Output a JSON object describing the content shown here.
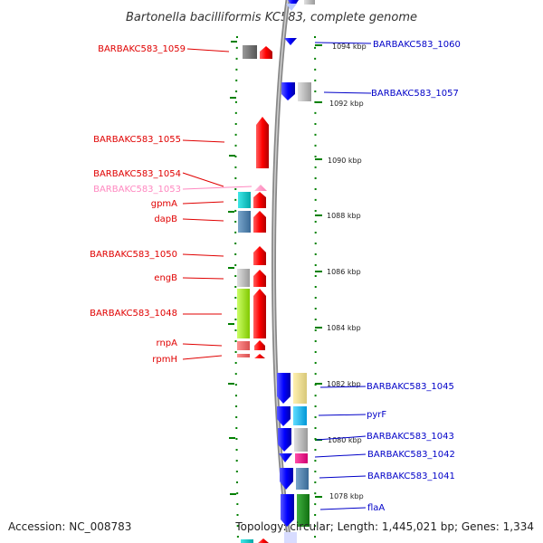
{
  "title": "Bartonella bacilliformis KC583, complete genome",
  "footer": {
    "accession": "Accession: NC_008783",
    "summary": "Topology: circular; Length: 1,445,021 bp; Genes: 1,334"
  },
  "kbp_labels": [
    "1094 kbp",
    "1092 kbp",
    "1090 kbp",
    "1088 kbp",
    "1086 kbp",
    "1084 kbp",
    "1082 kbp",
    "1080 kbp",
    "1078 kbp"
  ],
  "genes_left": [
    {
      "label": "BARBAKC583_1059",
      "color": "red"
    },
    {
      "label": "BARBAKC583_1055",
      "color": "red"
    },
    {
      "label": "BARBAKC583_1054",
      "color": "red"
    },
    {
      "label": "BARBAKC583_1053",
      "color": "pink"
    },
    {
      "label": "gpmA",
      "color": "red"
    },
    {
      "label": "dapB",
      "color": "red"
    },
    {
      "label": "BARBAKC583_1050",
      "color": "red"
    },
    {
      "label": "engB",
      "color": "red"
    },
    {
      "label": "BARBAKC583_1048",
      "color": "red"
    },
    {
      "label": "rnpA",
      "color": "red"
    },
    {
      "label": "rpmH",
      "color": "red"
    }
  ],
  "genes_right": [
    {
      "label": "BARBAKC583_1060",
      "color": "blue"
    },
    {
      "label": "BARBAKC583_1057",
      "color": "blue"
    },
    {
      "label": "BARBAKC583_1045",
      "color": "blue"
    },
    {
      "label": "pyrF",
      "color": "blue"
    },
    {
      "label": "BARBAKC583_1043",
      "color": "blue"
    },
    {
      "label": "BARBAKC583_1042",
      "color": "blue"
    },
    {
      "label": "BARBAKC583_1041",
      "color": "blue"
    },
    {
      "label": "flaA",
      "color": "blue"
    }
  ],
  "colors": {
    "forward_strand": "#ff0000",
    "reverse_strand": "#0000ff",
    "backbone": "#888888",
    "tick": "#008000"
  }
}
